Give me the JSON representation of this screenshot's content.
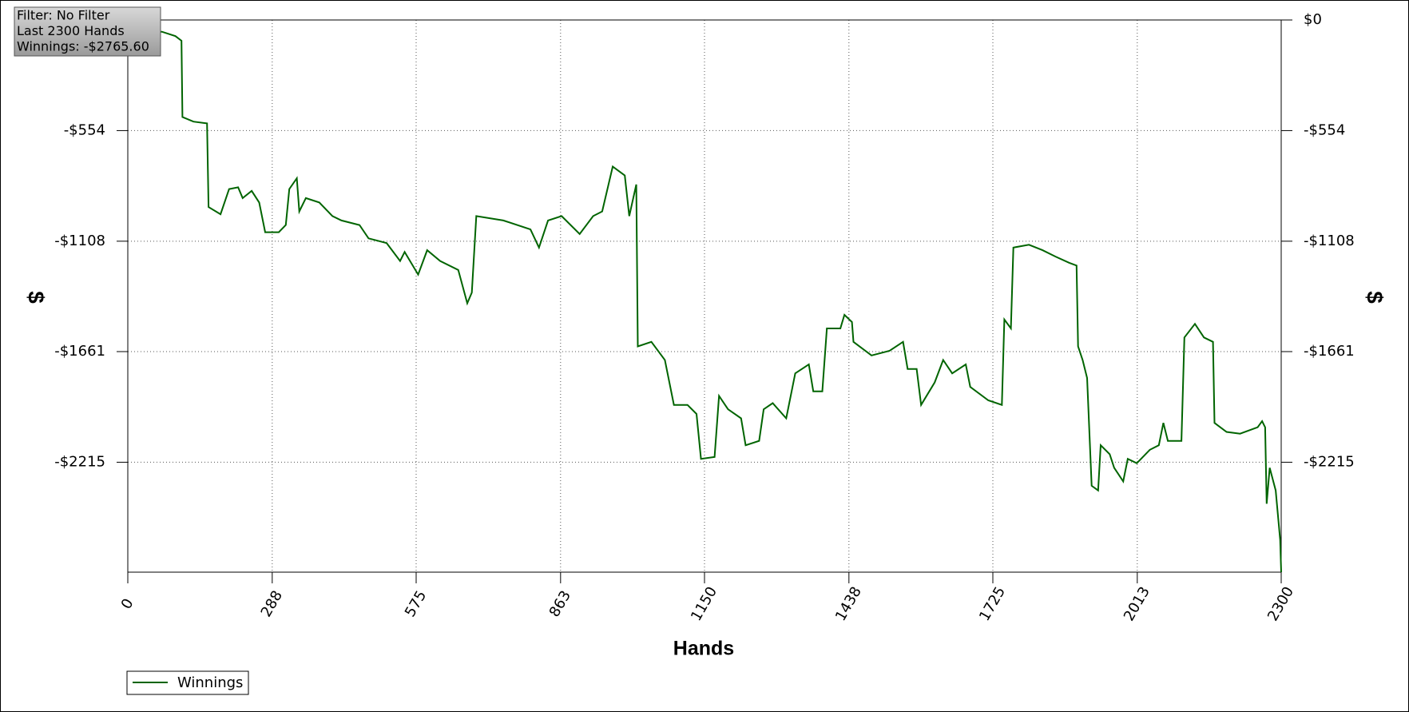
{
  "chart_data": {
    "type": "line",
    "info": [
      "Filter: No Filter",
      "Last 2300 Hands",
      "Winnings: -$2765.60"
    ],
    "x_label": "Hands",
    "y_label": "$",
    "xlim": [
      0,
      2300
    ],
    "xticks": [
      0,
      288,
      575,
      863,
      1150,
      1438,
      1725,
      2013,
      2300
    ],
    "ylim": [
      -2765.6,
      0
    ],
    "yticks": [
      {
        "value": 0,
        "label": "$0"
      },
      {
        "value": -554,
        "label": "-$554"
      },
      {
        "value": -1108,
        "label": "-$1108"
      },
      {
        "value": -1661,
        "label": "-$1661"
      },
      {
        "value": -2215,
        "label": "-$2215"
      }
    ],
    "grid": true,
    "legend": "bottom-left",
    "x": [
      0,
      68,
      95,
      107,
      109,
      131,
      158,
      161,
      185,
      202,
      220,
      229,
      247,
      262,
      274,
      301,
      315,
      322,
      337,
      342,
      355,
      382,
      408,
      426,
      462,
      480,
      516,
      543,
      552,
      579,
      597,
      623,
      659,
      677,
      686,
      695,
      749,
      803,
      820,
      838,
      865,
      901,
      928,
      946,
      967,
      991,
      1000,
      1014,
      1017,
      1044,
      1071,
      1089,
      1116,
      1134,
      1143,
      1170,
      1179,
      1197,
      1223,
      1232,
      1259,
      1268,
      1286,
      1313,
      1331,
      1358,
      1367,
      1385,
      1394,
      1421,
      1429,
      1444,
      1447,
      1483,
      1519,
      1546,
      1555,
      1573,
      1582,
      1609,
      1626,
      1644,
      1671,
      1680,
      1716,
      1743,
      1748,
      1761,
      1766,
      1797,
      1824,
      1850,
      1877,
      1892,
      1895,
      1904,
      1913,
      1922,
      1935,
      1940,
      1958,
      1967,
      1985,
      1994,
      2012,
      2038,
      2056,
      2065,
      2074,
      2101,
      2107,
      2128,
      2146,
      2164,
      2167,
      2191,
      2218,
      2253,
      2262,
      2268,
      2271,
      2277,
      2289,
      2298,
      2300
    ],
    "series": [
      {
        "name": "Winnings",
        "color": "#006400",
        "values": [
          -59,
          -59,
          -81,
          -104,
          -486,
          -509,
          -518,
          -937,
          -973,
          -847,
          -838,
          -892,
          -856,
          -914,
          -1063,
          -1063,
          -1027,
          -847,
          -793,
          -959,
          -892,
          -914,
          -982,
          -1004,
          -1027,
          -1094,
          -1117,
          -1207,
          -1162,
          -1275,
          -1153,
          -1207,
          -1252,
          -1419,
          -1365,
          -982,
          -1004,
          -1049,
          -1140,
          -1004,
          -982,
          -1072,
          -982,
          -959,
          -734,
          -779,
          -982,
          -824,
          -1635,
          -1612,
          -1703,
          -1928,
          -1928,
          -1973,
          -2198,
          -2189,
          -1883,
          -1950,
          -1995,
          -2130,
          -2108,
          -1950,
          -1919,
          -1995,
          -1770,
          -1725,
          -1860,
          -1860,
          -1545,
          -1545,
          -1477,
          -1513,
          -1612,
          -1680,
          -1657,
          -1612,
          -1748,
          -1748,
          -1928,
          -1815,
          -1703,
          -1770,
          -1725,
          -1838,
          -1905,
          -1928,
          -1500,
          -1545,
          -1140,
          -1126,
          -1153,
          -1185,
          -1216,
          -1230,
          -1635,
          -1703,
          -1793,
          -2333,
          -2356,
          -2130,
          -2175,
          -2243,
          -2311,
          -2198,
          -2220,
          -2153,
          -2130,
          -2018,
          -2108,
          -2108,
          -1590,
          -1522,
          -1590,
          -1612,
          -2018,
          -2063,
          -2072,
          -2040,
          -2009,
          -2040,
          -2423,
          -2243,
          -2356,
          -2603,
          -2765.6
        ]
      }
    ]
  }
}
